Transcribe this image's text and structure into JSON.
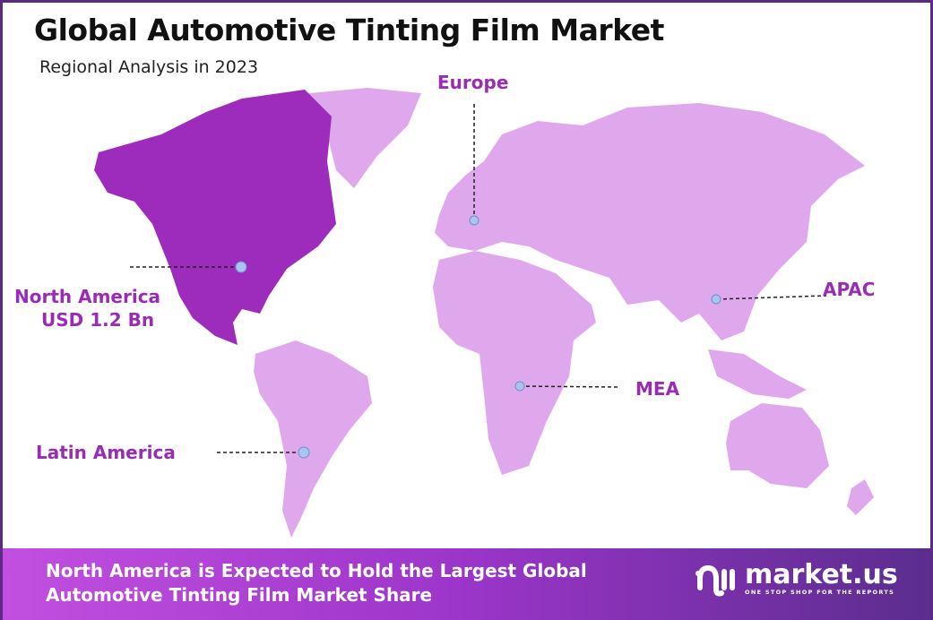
{
  "header": {
    "title": "Global Automotive Tinting Film Market",
    "subtitle": "Regional Analysis in 2023"
  },
  "regions": [
    {
      "name": "Europe"
    },
    {
      "name": "North America",
      "value": "USD 1.2 Bn",
      "highlighted": true
    },
    {
      "name": "APAC"
    },
    {
      "name": "MEA"
    },
    {
      "name": "Latin America"
    }
  ],
  "colors": {
    "highlight": "#9d2cbd",
    "other": "#dfa8ec",
    "label": "#9a2bb5",
    "marker": "#a9c4ee",
    "border": "#5b2a82"
  },
  "footer": {
    "line1": "North America is Expected to Hold the Largest Global",
    "line2": "Automotive Tinting Film Market Share"
  },
  "logo": {
    "brand": "market.us",
    "tagline": "ONE STOP SHOP FOR THE REPORTS"
  }
}
